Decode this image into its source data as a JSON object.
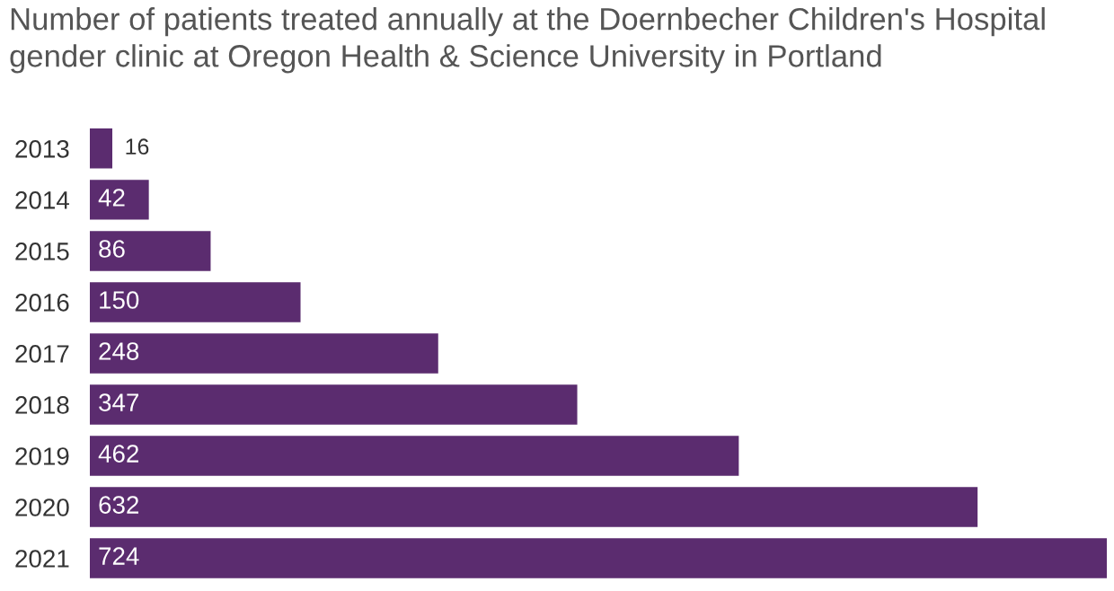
{
  "chart_data": {
    "type": "bar",
    "orientation": "horizontal",
    "title": "Number of patients treated annually at the Doernbecher Children's Hospital\ngender clinic at Oregon Health & Science University in Portland",
    "categories": [
      "2013",
      "2014",
      "2015",
      "2016",
      "2017",
      "2018",
      "2019",
      "2020",
      "2021"
    ],
    "values": [
      16,
      42,
      86,
      150,
      248,
      347,
      462,
      632,
      724
    ],
    "color": "#5b2c6f",
    "data_labels": true,
    "grid": false,
    "legend": false
  }
}
